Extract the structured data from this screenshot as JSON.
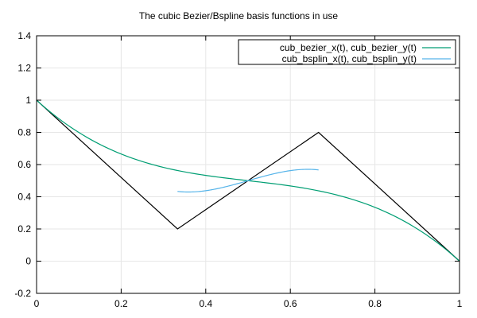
{
  "chart_data": {
    "type": "line",
    "title": "The cubic Bezier/Bspline basis functions in use",
    "xlabel": "",
    "ylabel": "",
    "xlim": [
      0,
      1
    ],
    "ylim": [
      -0.2,
      1.4
    ],
    "x_ticks": [
      0,
      0.2,
      0.4,
      0.6,
      0.8,
      1
    ],
    "x_tick_labels": [
      "0",
      "0.2",
      "0.4",
      "0.6",
      "0.8",
      "1"
    ],
    "y_ticks": [
      -0.2,
      0,
      0.2,
      0.4,
      0.6,
      0.8,
      1,
      1.2,
      1.4
    ],
    "y_tick_labels": [
      "-0.2",
      "0",
      "0.2",
      "0.4",
      "0.6",
      "0.8",
      "1",
      "1.2",
      "1.4"
    ],
    "grid": true,
    "legend_position": "top-right",
    "control_polygon": {
      "color": "#000000",
      "points": [
        [
          0,
          1
        ],
        [
          0.3333,
          0.2
        ],
        [
          0.6667,
          0.8
        ],
        [
          1,
          0
        ]
      ]
    },
    "series": [
      {
        "name": "cub_bezier_x(t), cub_bezier_y(t)",
        "color": "#009e73",
        "control_points": [
          [
            0,
            1
          ],
          [
            0.3333,
            0.2
          ],
          [
            0.6667,
            0.8
          ],
          [
            1,
            0
          ]
        ],
        "x": [
          0,
          0.1,
          0.2,
          0.3,
          0.4,
          0.5,
          0.6,
          0.7,
          0.8,
          0.9,
          1
        ],
        "y": [
          1,
          0.77,
          0.64,
          0.57,
          0.53,
          0.5,
          0.47,
          0.43,
          0.36,
          0.23,
          0
        ]
      },
      {
        "name": "cub_bsplin_x(t), cub_bsplin_y(t)",
        "color": "#56b4e9",
        "control_points": [
          [
            0,
            1
          ],
          [
            0.3333,
            0.2
          ],
          [
            0.6667,
            0.8
          ],
          [
            1,
            0
          ]
        ],
        "x": [
          0.333,
          0.389,
          0.444,
          0.5,
          0.556,
          0.611,
          0.667
        ],
        "y": [
          0.433,
          0.438,
          0.467,
          0.5,
          0.533,
          0.562,
          0.567
        ]
      }
    ]
  }
}
